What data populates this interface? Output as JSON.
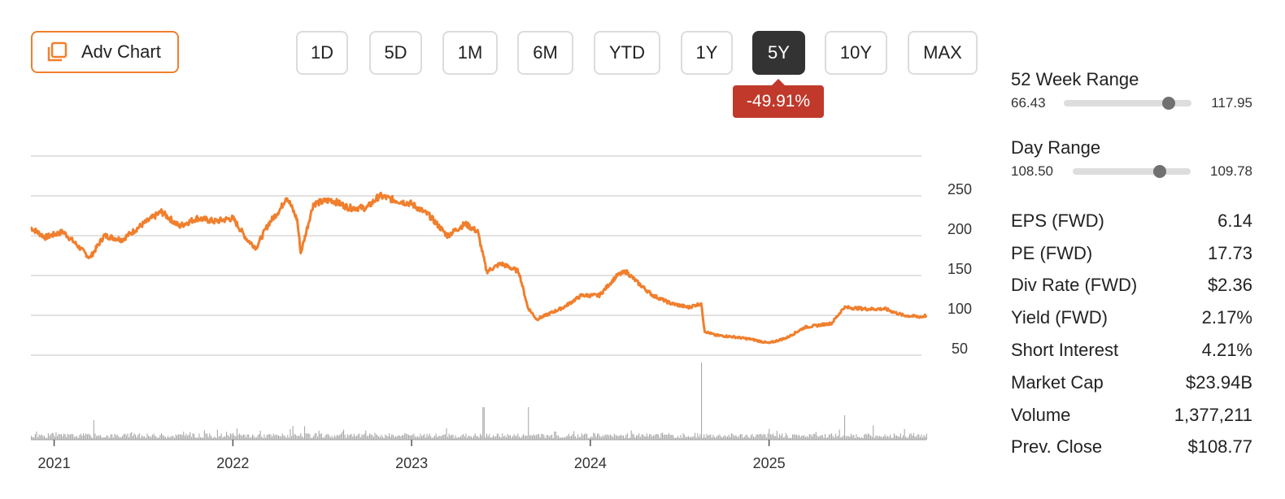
{
  "toolbar": {
    "adv_chart_label": "Adv Chart",
    "ranges": [
      "1D",
      "5D",
      "1M",
      "6M",
      "YTD",
      "1Y",
      "5Y",
      "10Y",
      "MAX"
    ],
    "active_range": "5Y",
    "change_label": "-49.91%"
  },
  "colors": {
    "accent": "#f07f2d",
    "line": "#f07f2d",
    "negative": "#c0392b",
    "volume": "#a9a9a9",
    "grid": "#d9d9d9"
  },
  "chart_data": {
    "type": "line",
    "title": "",
    "xlabel": "",
    "ylabel": "",
    "x_tick_labels": [
      "2021",
      "2022",
      "2023",
      "2024",
      "2025"
    ],
    "y_tick_labels": [
      "250",
      "200",
      "150",
      "100",
      "50"
    ],
    "ylim": [
      25,
      280
    ],
    "grid": true,
    "series": [
      {
        "values_x": [
          2020.87,
          2020.95,
          2021.05,
          2021.12,
          2021.2,
          2021.28,
          2021.38,
          2021.5,
          2021.6,
          2021.7,
          2021.8,
          2021.9,
          2022.0,
          2022.08,
          2022.13,
          2022.2,
          2022.27,
          2022.3,
          2022.36,
          2022.38,
          2022.45,
          2022.55,
          2022.65,
          2022.75,
          2022.82,
          2022.9,
          2023.0,
          2023.1,
          2023.2,
          2023.3,
          2023.37,
          2023.42,
          2023.5,
          2023.6,
          2023.65,
          2023.7,
          2023.75,
          2023.85,
          2023.95,
          2024.05,
          2024.15,
          2024.2,
          2024.27,
          2024.35,
          2024.45,
          2024.55,
          2024.62,
          2024.64,
          2024.7,
          2024.8,
          2024.9,
          2025.0,
          2025.1,
          2025.2,
          2025.35,
          2025.42,
          2025.55,
          2025.65,
          2025.75,
          2025.85,
          2025.88
        ],
        "values_y": [
          210,
          198,
          205,
          190,
          172,
          200,
          195,
          215,
          230,
          212,
          222,
          218,
          222,
          195,
          185,
          215,
          235,
          250,
          220,
          178,
          240,
          245,
          235,
          235,
          250,
          245,
          240,
          225,
          200,
          215,
          205,
          155,
          165,
          155,
          110,
          95,
          100,
          110,
          125,
          125,
          150,
          155,
          140,
          125,
          115,
          110,
          115,
          80,
          75,
          73,
          70,
          65,
          72,
          85,
          90,
          110,
          108,
          108,
          100,
          98,
          100
        ]
      }
    ],
    "volume": {
      "note_peaks_x": [
        2021.22,
        2023.4,
        2023.65,
        2023.8,
        2024.62,
        2025.42
      ],
      "note_peaks_y": [
        24,
        40,
        40,
        10,
        95,
        30
      ]
    }
  },
  "stats": {
    "week52": {
      "title": "52 Week Range",
      "low": "66.43",
      "high": "117.95",
      "position": 0.82
    },
    "day": {
      "title": "Day Range",
      "low": "108.50",
      "high": "109.78",
      "position": 0.74
    },
    "rows": [
      {
        "label": "EPS (FWD)",
        "value": "6.14"
      },
      {
        "label": "PE (FWD)",
        "value": "17.73"
      },
      {
        "label": "Div Rate (FWD)",
        "value": "$2.36"
      },
      {
        "label": "Yield (FWD)",
        "value": "2.17%"
      },
      {
        "label": "Short Interest",
        "value": "4.21%"
      },
      {
        "label": "Market Cap",
        "value": "$23.94B"
      },
      {
        "label": "Volume",
        "value": "1,377,211"
      },
      {
        "label": "Prev. Close",
        "value": "$108.77"
      }
    ]
  }
}
